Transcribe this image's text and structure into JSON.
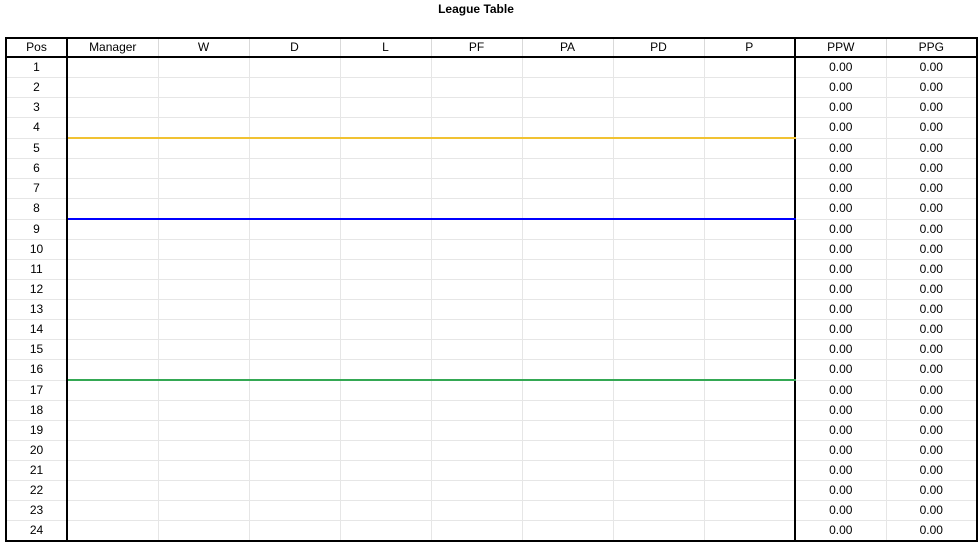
{
  "sheet": {
    "title": "League Table"
  },
  "table": {
    "columns": [
      "Pos",
      "Manager",
      "W",
      "D",
      "L",
      "PF",
      "PA",
      "PD",
      "P",
      "PPW",
      "PPG"
    ],
    "rows": [
      {
        "pos": "1",
        "ppw": "0.00",
        "ppg": "0.00"
      },
      {
        "pos": "2",
        "ppw": "0.00",
        "ppg": "0.00"
      },
      {
        "pos": "3",
        "ppw": "0.00",
        "ppg": "0.00"
      },
      {
        "pos": "4",
        "ppw": "0.00",
        "ppg": "0.00"
      },
      {
        "pos": "5",
        "ppw": "0.00",
        "ppg": "0.00"
      },
      {
        "pos": "6",
        "ppw": "0.00",
        "ppg": "0.00"
      },
      {
        "pos": "7",
        "ppw": "0.00",
        "ppg": "0.00"
      },
      {
        "pos": "8",
        "ppw": "0.00",
        "ppg": "0.00"
      },
      {
        "pos": "9",
        "ppw": "0.00",
        "ppg": "0.00"
      },
      {
        "pos": "10",
        "ppw": "0.00",
        "ppg": "0.00"
      },
      {
        "pos": "11",
        "ppw": "0.00",
        "ppg": "0.00"
      },
      {
        "pos": "12",
        "ppw": "0.00",
        "ppg": "0.00"
      },
      {
        "pos": "13",
        "ppw": "0.00",
        "ppg": "0.00"
      },
      {
        "pos": "14",
        "ppw": "0.00",
        "ppg": "0.00"
      },
      {
        "pos": "15",
        "ppw": "0.00",
        "ppg": "0.00"
      },
      {
        "pos": "16",
        "ppw": "0.00",
        "ppg": "0.00"
      },
      {
        "pos": "17",
        "ppw": "0.00",
        "ppg": "0.00"
      },
      {
        "pos": "18",
        "ppw": "0.00",
        "ppg": "0.00"
      },
      {
        "pos": "19",
        "ppw": "0.00",
        "ppg": "0.00"
      },
      {
        "pos": "20",
        "ppw": "0.00",
        "ppg": "0.00"
      },
      {
        "pos": "21",
        "ppw": "0.00",
        "ppg": "0.00"
      },
      {
        "pos": "22",
        "ppw": "0.00",
        "ppg": "0.00"
      },
      {
        "pos": "23",
        "ppw": "0.00",
        "ppg": "0.00"
      },
      {
        "pos": "24",
        "ppw": "0.00",
        "ppg": "0.00"
      }
    ],
    "zone_colors": {
      "after_row_4": "#f1c232",
      "after_row_8": "#0000ff",
      "after_row_16": "#34a853"
    }
  }
}
